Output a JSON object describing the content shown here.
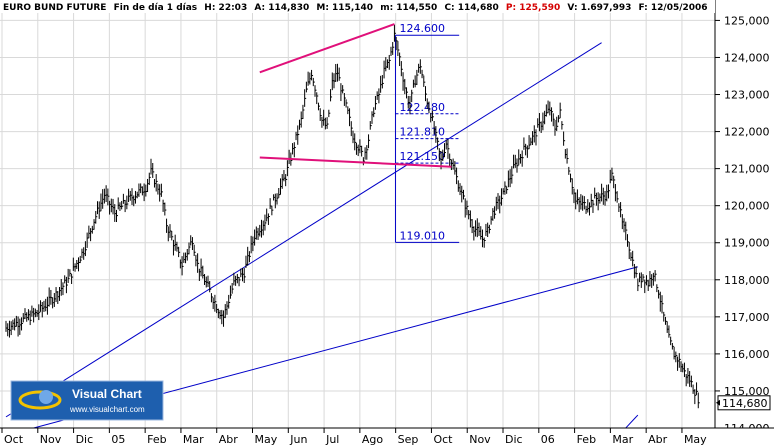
{
  "header": {
    "instrument": "EURO BUND FUTURE",
    "timeframe": "Fin de día 1 días",
    "h_time": "H: 22:03",
    "a": "A: 114,830",
    "m": "M: 115,140",
    "m2": "m: 114,550",
    "c": "C: 114,680",
    "p": "P: 125,590",
    "vol": "V: 1.697,993",
    "date": "F: 12/05/2006"
  },
  "logo": {
    "name": "Visual Chart",
    "url": "www.visualchart.com"
  },
  "colors": {
    "background": "#ffffff",
    "grid": "#d9d9d9",
    "trend": "#0000c8",
    "channel": "#e0107a",
    "price_red": "#d40000",
    "axis_bg": "#d4d0c8",
    "logo_bg": "#1e5fae"
  },
  "chart_data": {
    "type": "ohlc",
    "title": "EURO BUND FUTURE",
    "ylim": [
      114.0,
      125.2
    ],
    "y_ticks": [
      114.0,
      115.0,
      116.0,
      117.0,
      118.0,
      119.0,
      120.0,
      121.0,
      122.0,
      123.0,
      124.0,
      125.0
    ],
    "y_tick_labels": [
      "114,000",
      "115,000",
      "116,000",
      "117,000",
      "118,000",
      "119,000",
      "120,000",
      "121,000",
      "122,000",
      "123,000",
      "124,000",
      "125,000"
    ],
    "x_labels": [
      "Oct",
      "Nov",
      "Dic",
      "05",
      "Feb",
      "Mar",
      "Abr",
      "May",
      "Jun",
      "Jul",
      "Ago",
      "Sep",
      "Oct",
      "Nov",
      "Dic",
      "06",
      "Feb",
      "Mar",
      "Abr",
      "May"
    ],
    "last_price": 114.68,
    "last_price_label": "114,680",
    "price_path": [
      [
        0,
        116.7
      ],
      [
        3,
        116.9
      ],
      [
        6,
        117.1
      ],
      [
        9,
        117.5
      ],
      [
        12,
        118.0
      ],
      [
        15,
        118.8
      ],
      [
        17,
        119.6
      ],
      [
        19,
        120.3
      ],
      [
        21,
        119.8
      ],
      [
        24,
        120.2
      ],
      [
        27,
        120.5
      ],
      [
        28,
        120.9
      ],
      [
        30,
        120.3
      ],
      [
        31,
        119.5
      ],
      [
        34,
        118.4
      ],
      [
        36,
        119.1
      ],
      [
        37,
        118.4
      ],
      [
        39,
        117.8
      ],
      [
        41,
        117.2
      ],
      [
        42,
        117.0
      ],
      [
        44,
        117.9
      ],
      [
        46,
        118.2
      ],
      [
        48,
        119.2
      ],
      [
        50,
        119.6
      ],
      [
        52,
        120.2
      ],
      [
        54,
        120.8
      ],
      [
        56,
        121.8
      ],
      [
        57,
        122.3
      ],
      [
        58,
        123.1
      ],
      [
        59,
        123.6
      ],
      [
        60,
        123.0
      ],
      [
        61,
        122.3
      ],
      [
        62,
        122.1
      ],
      [
        63,
        123.3
      ],
      [
        64,
        123.6
      ],
      [
        65,
        123.0
      ],
      [
        66,
        122.5
      ],
      [
        67,
        121.9
      ],
      [
        69,
        121.3
      ],
      [
        70,
        121.8
      ],
      [
        71,
        122.6
      ],
      [
        72,
        123.0
      ],
      [
        73,
        123.6
      ],
      [
        74,
        123.9
      ],
      [
        75,
        124.6
      ],
      [
        76,
        124.0
      ],
      [
        77,
        123.2
      ],
      [
        78,
        122.7
      ],
      [
        79,
        123.4
      ],
      [
        80,
        123.8
      ],
      [
        81,
        123.0
      ],
      [
        82,
        122.5
      ],
      [
        84,
        121.2
      ],
      [
        85,
        121.7
      ],
      [
        86,
        121.2
      ],
      [
        88,
        120.3
      ],
      [
        90,
        119.5
      ],
      [
        92,
        119.1
      ],
      [
        93,
        119.3
      ],
      [
        94,
        119.8
      ],
      [
        96,
        120.3
      ],
      [
        98,
        121.0
      ],
      [
        100,
        121.5
      ],
      [
        102,
        121.9
      ],
      [
        104,
        122.4
      ],
      [
        105,
        122.6
      ],
      [
        106,
        122.1
      ],
      [
        107,
        122.5
      ],
      [
        108,
        121.5
      ],
      [
        109,
        120.8
      ],
      [
        110,
        120.1
      ],
      [
        112,
        120.0
      ],
      [
        114,
        120.2
      ],
      [
        116,
        120.3
      ],
      [
        117,
        120.8
      ],
      [
        118,
        120.3
      ],
      [
        119,
        119.5
      ],
      [
        120,
        119.1
      ],
      [
        121,
        118.5
      ],
      [
        122,
        117.9
      ],
      [
        123,
        118.1
      ],
      [
        124,
        117.9
      ],
      [
        125,
        118.2
      ],
      [
        126,
        117.7
      ],
      [
        127,
        117.0
      ],
      [
        128,
        116.4
      ],
      [
        129,
        116.0
      ],
      [
        130,
        115.8
      ],
      [
        131,
        115.5
      ],
      [
        132,
        115.3
      ],
      [
        133,
        115.0
      ],
      [
        134,
        114.7
      ]
    ],
    "fibonacci": {
      "high": 124.6,
      "low": 119.01,
      "levels": [
        124.6,
        122.48,
        121.81,
        121.15,
        119.01
      ],
      "labels": [
        "124.600",
        "122.480",
        "121.810",
        "121.150",
        "119.010"
      ]
    },
    "trendlines_blue": [
      [
        [
          0,
          114.3
        ],
        [
          115,
          124.4
        ]
      ],
      [
        [
          0,
          113.8
        ],
        [
          122,
          118.35
        ]
      ],
      [
        [
          119,
          113.9
        ],
        [
          122,
          114.35
        ]
      ]
    ],
    "trendlines_pink": [
      [
        [
          49,
          123.6
        ],
        [
          75,
          124.9
        ]
      ],
      [
        [
          49,
          121.3
        ],
        [
          86,
          121.05
        ]
      ]
    ]
  }
}
